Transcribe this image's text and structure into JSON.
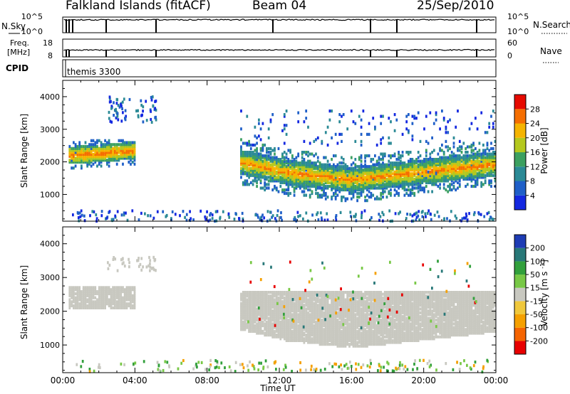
{
  "header": {
    "station": "Falkland Islands (fitACF)",
    "beam": "Beam 04",
    "date": "25/Sep/2010"
  },
  "panels": {
    "nsky": {
      "left_label": "N.Sky",
      "right_label": "N.Search",
      "left_ticks": [
        "10^5",
        "10^0"
      ],
      "right_ticks": [
        "10^5",
        "10^0"
      ]
    },
    "freq": {
      "left_label_1": "Freq.",
      "left_label_2": "[MHz]",
      "right_label": "Nave",
      "left_ticks": [
        "18",
        "8"
      ],
      "right_ticks": [
        "60",
        "0"
      ]
    },
    "cpid": {
      "left_label": "CPID",
      "program": "themis 3300"
    }
  },
  "colors": {
    "power": [
      "#1428e0",
      "#1f5fc8",
      "#2b8a96",
      "#3ca060",
      "#b4c81e",
      "#f5b400",
      "#f56e00",
      "#e60a00"
    ],
    "velocity": [
      "#e80000",
      "#f56400",
      "#f5a000",
      "#f0c83c",
      "#c8c8c0",
      "#78c846",
      "#32a03c",
      "#287878",
      "#1e3cb4"
    ]
  },
  "chart_data": [
    {
      "type": "heatmap",
      "title": "Power",
      "quantity": "Power",
      "xlabel": "Time UT",
      "ylabel": "Slant Range [km]",
      "xlim": [
        "00:00",
        "24:00"
      ],
      "ylim": [
        180,
        4500
      ],
      "yticks": [
        1000,
        2000,
        3000,
        4000
      ],
      "xtick_labels": [
        "00:00",
        "04:00",
        "08:00",
        "12:00",
        "16:00",
        "20:00",
        "00:00"
      ],
      "colorbar": {
        "label": "Power [dB]",
        "ticks": [
          "4",
          "8",
          "12",
          "16",
          "20",
          "24",
          "28"
        ],
        "range": [
          0,
          32
        ]
      },
      "regions": [
        {
          "name": "early band",
          "time": [
            "00:20",
            "04:00"
          ],
          "range_km": [
            1750,
            2800
          ],
          "peak": 28
        },
        {
          "name": "early upper echoes",
          "time": [
            "02:30",
            "05:10"
          ],
          "range_km": [
            3200,
            4000
          ],
          "peak": 8
        },
        {
          "name": "main band",
          "time": [
            "09:50",
            "24:00"
          ],
          "range_km": [
            800,
            3500
          ],
          "peak": 28
        },
        {
          "name": "near-range scatter",
          "time": [
            "00:30",
            "23:50"
          ],
          "range_km": [
            180,
            500
          ],
          "peak": 10
        }
      ]
    },
    {
      "type": "heatmap",
      "title": "Velocity",
      "quantity": "Velocity",
      "xlabel": "Time UT",
      "ylabel": "Slant Range [km]",
      "xlim": [
        "00:00",
        "24:00"
      ],
      "ylim": [
        180,
        4500
      ],
      "yticks": [
        1000,
        2000,
        3000,
        4000
      ],
      "xtick_labels": [
        "00:00",
        "04:00",
        "08:00",
        "12:00",
        "16:00",
        "20:00",
        "00:00"
      ],
      "colorbar": {
        "label_1": "Velocity",
        "label_2": "[m s",
        "label_3": "-1",
        "label_4": "]",
        "ticks": [
          "-200",
          "-100",
          "-50",
          "-15",
          "15",
          "50",
          "100",
          "200"
        ],
        "range": [
          -250,
          250
        ]
      },
      "dominant_value": 0,
      "regions": [
        {
          "name": "early band",
          "time": [
            "00:20",
            "04:00"
          ],
          "range_km": [
            2100,
            2800
          ],
          "value": 0
        },
        {
          "name": "main band",
          "time": [
            "09:50",
            "24:00"
          ],
          "range_km": [
            800,
            3500
          ],
          "value": 0
        },
        {
          "name": "scattered flows",
          "time": [
            "10:00",
            "23:00"
          ],
          "range_km": [
            1500,
            3500
          ],
          "values": [
            -200,
            -50,
            50,
            100,
            200
          ]
        }
      ]
    }
  ]
}
